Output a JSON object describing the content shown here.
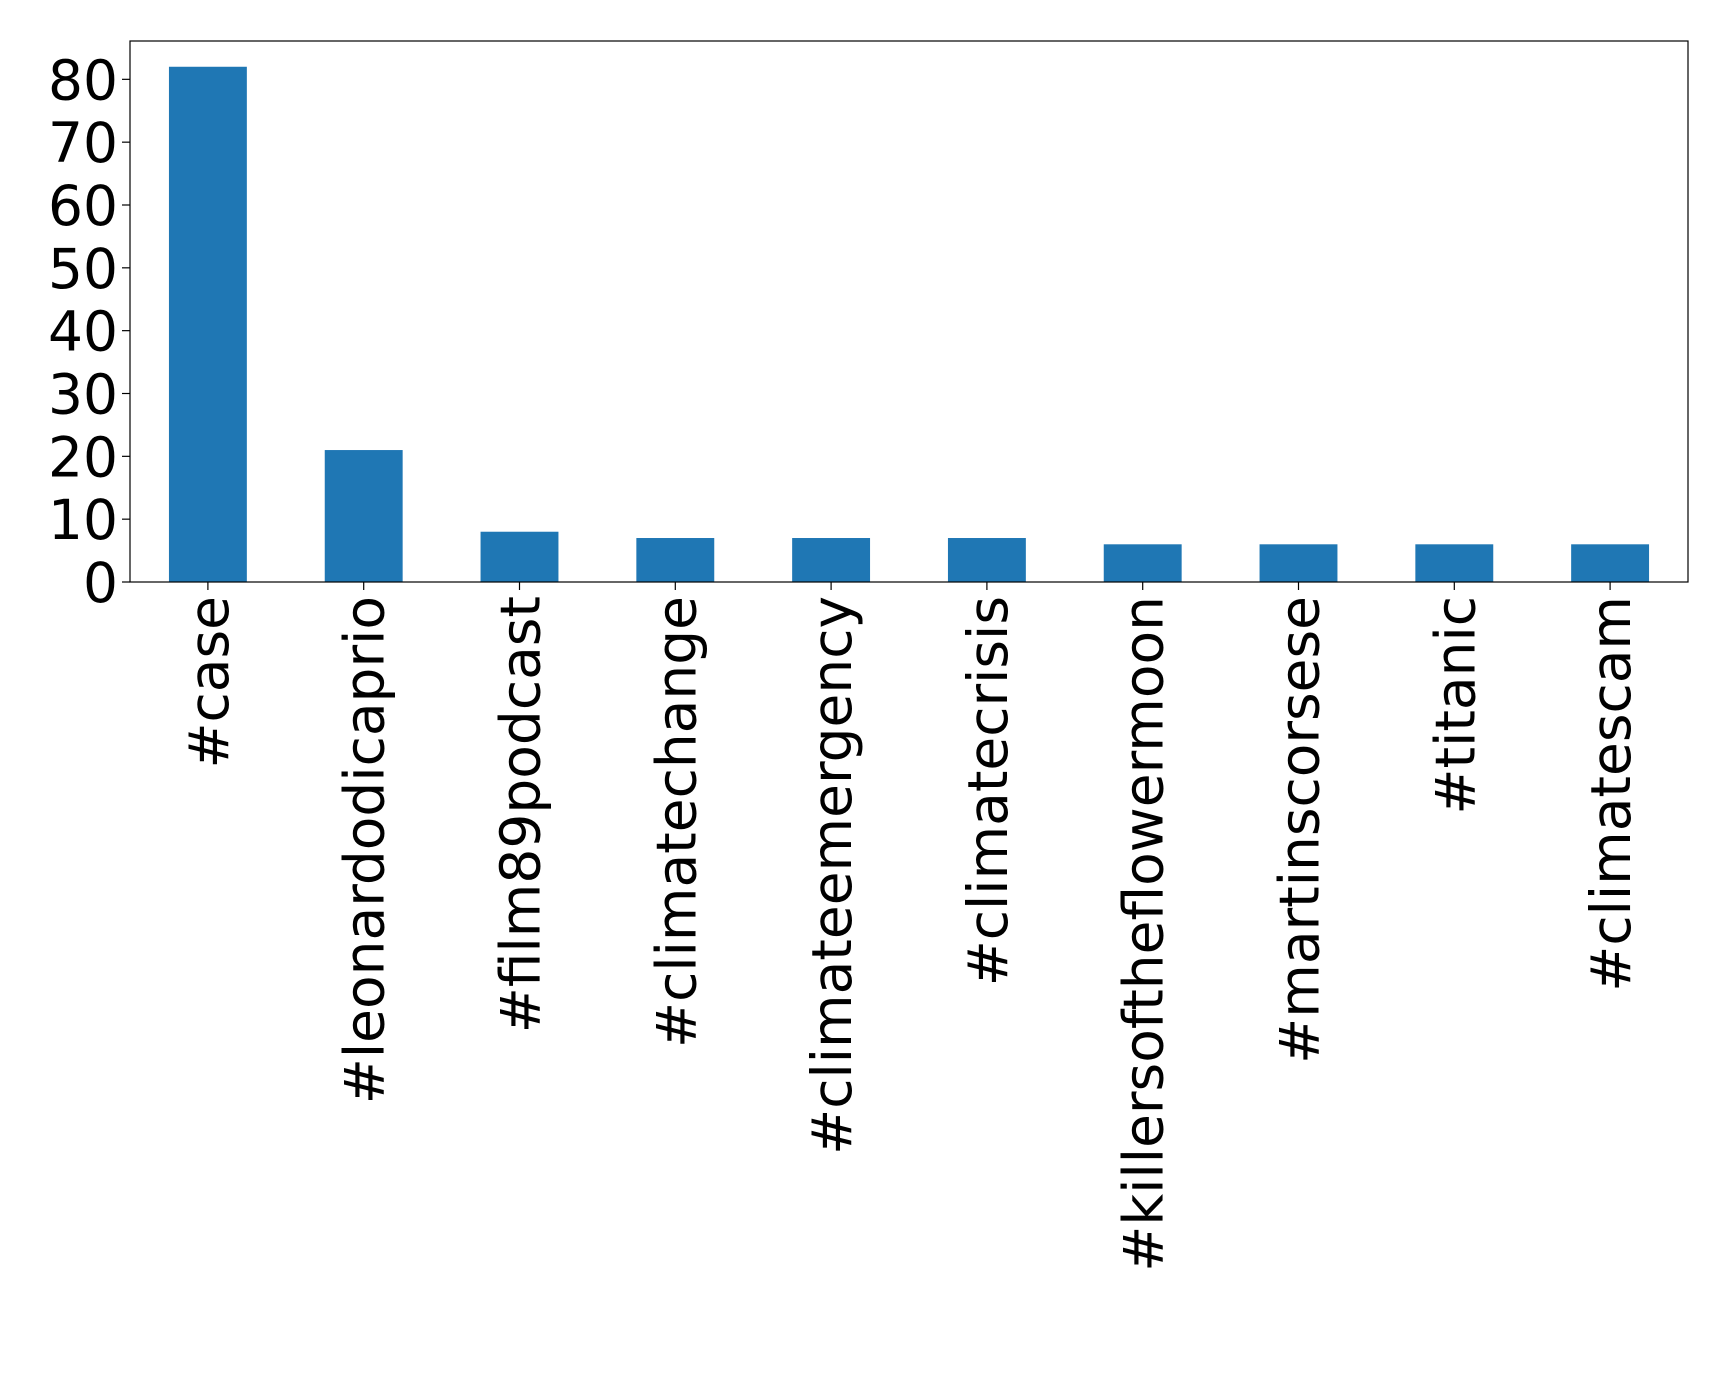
{
  "chart_data": {
    "type": "bar",
    "categories": [
      "#case",
      "#leonardodicaprio",
      "#film89podcast",
      "#climatechange",
      "#climateemergency",
      "#climatecrisis",
      "#killersoftheflowermoon",
      "#martinscorsese",
      "#titanic",
      "#climatescam"
    ],
    "values": [
      82,
      21,
      8,
      7,
      7,
      7,
      6,
      6,
      6,
      6
    ],
    "color": "#1f77b4",
    "ylim": [
      0,
      86.1
    ],
    "yticks": [
      0,
      10,
      20,
      30,
      40,
      50,
      60,
      70,
      80
    ],
    "grid": false
  }
}
